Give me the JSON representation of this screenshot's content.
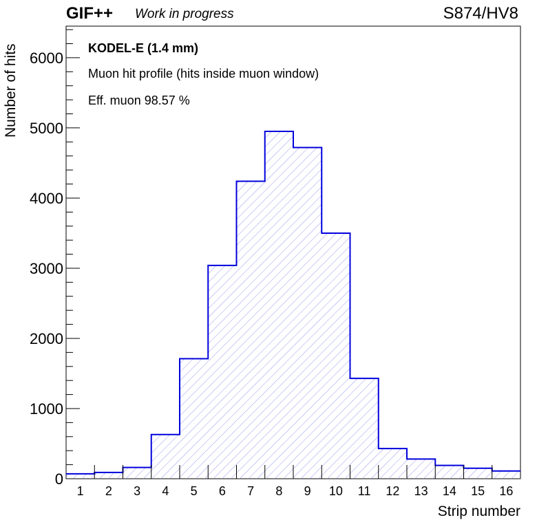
{
  "header": {
    "brand": "GIF++",
    "status": "Work in progress",
    "detector": "S874/HV8"
  },
  "info": {
    "title": "KODEL-E (1.4 mm)",
    "subtitle": "Muon hit profile (hits inside muon window)",
    "efficiency": "Eff. muon 98.57 %"
  },
  "colors": {
    "line": "#0000dd",
    "hatch": "#9999ee",
    "axis": "#000000"
  },
  "chart_data": {
    "type": "bar",
    "style": "histogram step with hatched fill",
    "categories": [
      "1",
      "2",
      "3",
      "4",
      "5",
      "6",
      "7",
      "8",
      "9",
      "10",
      "11",
      "12",
      "13",
      "14",
      "15",
      "16"
    ],
    "values": [
      70,
      90,
      160,
      630,
      1710,
      3040,
      4240,
      4950,
      4720,
      3500,
      1430,
      430,
      280,
      190,
      150,
      110
    ],
    "xlabel": "Strip number",
    "ylabel": "Number of hits",
    "xlim": [
      0.5,
      16.5
    ],
    "ylim": [
      0,
      6450
    ],
    "yticks": [
      "0",
      "1000",
      "2000",
      "3000",
      "4000",
      "5000",
      "6000"
    ],
    "grid": false,
    "legend": "none"
  }
}
